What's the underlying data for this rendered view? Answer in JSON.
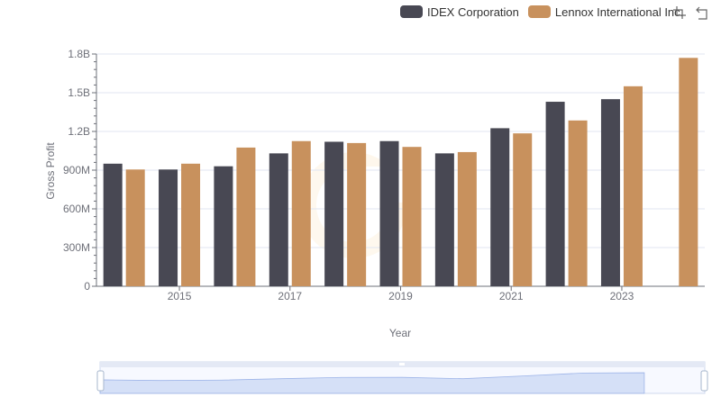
{
  "chart_data": {
    "type": "bar",
    "title": "",
    "xlabel": "Year",
    "ylabel": "Gross Profit",
    "x_tick_labels": [
      "2015",
      "2017",
      "2019",
      "2021",
      "2023"
    ],
    "y_tick_labels": [
      "0",
      "300M",
      "600M",
      "900M",
      "1.2B",
      "1.5B",
      "1.8B"
    ],
    "ylim": [
      0,
      1800000000
    ],
    "grid": true,
    "legend_position": "top-right",
    "categories": [
      "2014",
      "2015",
      "2016",
      "2017",
      "2018",
      "2019",
      "2020",
      "2021",
      "2022",
      "2023",
      "2024"
    ],
    "series": [
      {
        "name": "IDEX Corporation",
        "color": "#484853",
        "values": [
          950000000,
          905000000,
          930000000,
          1030000000,
          1120000000,
          1125000000,
          1030000000,
          1225000000,
          1430000000,
          1450000000,
          null
        ]
      },
      {
        "name": "Lennox International Inc.",
        "color": "#c8915d",
        "values": [
          905000000,
          950000000,
          1075000000,
          1125000000,
          1110000000,
          1080000000,
          1040000000,
          1185000000,
          1285000000,
          1550000000,
          1770000000
        ]
      }
    ]
  },
  "toolbox": {
    "zoom_icon": "zoom-icon",
    "restore_icon": "restore-icon"
  }
}
